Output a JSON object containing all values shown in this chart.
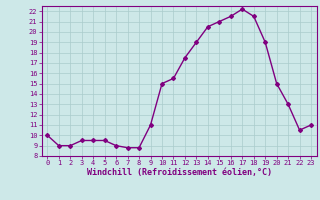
{
  "x": [
    0,
    1,
    2,
    3,
    4,
    5,
    6,
    7,
    8,
    9,
    10,
    11,
    12,
    13,
    14,
    15,
    16,
    17,
    18,
    19,
    20,
    21,
    22,
    23
  ],
  "y": [
    10,
    9,
    9,
    9.5,
    9.5,
    9.5,
    9,
    8.8,
    8.8,
    11,
    15,
    15.5,
    17.5,
    19,
    20.5,
    21,
    21.5,
    22.2,
    21.5,
    19,
    15,
    13,
    10.5,
    11
  ],
  "xlabel": "Windchill (Refroidissement éolien,°C)",
  "xlim": [
    -0.5,
    23.5
  ],
  "ylim": [
    8,
    22.5
  ],
  "yticks": [
    8,
    9,
    10,
    11,
    12,
    13,
    14,
    15,
    16,
    17,
    18,
    19,
    20,
    21,
    22
  ],
  "xticks": [
    0,
    1,
    2,
    3,
    4,
    5,
    6,
    7,
    8,
    9,
    10,
    11,
    12,
    13,
    14,
    15,
    16,
    17,
    18,
    19,
    20,
    21,
    22,
    23
  ],
  "line_color": "#800080",
  "marker": "D",
  "marker_size": 2.0,
  "bg_color": "#cde8e8",
  "grid_color": "#aacccc",
  "tick_color": "#800080",
  "label_color": "#800080",
  "line_width": 1.0,
  "tick_fontsize": 5.0,
  "xlabel_fontsize": 6.0
}
